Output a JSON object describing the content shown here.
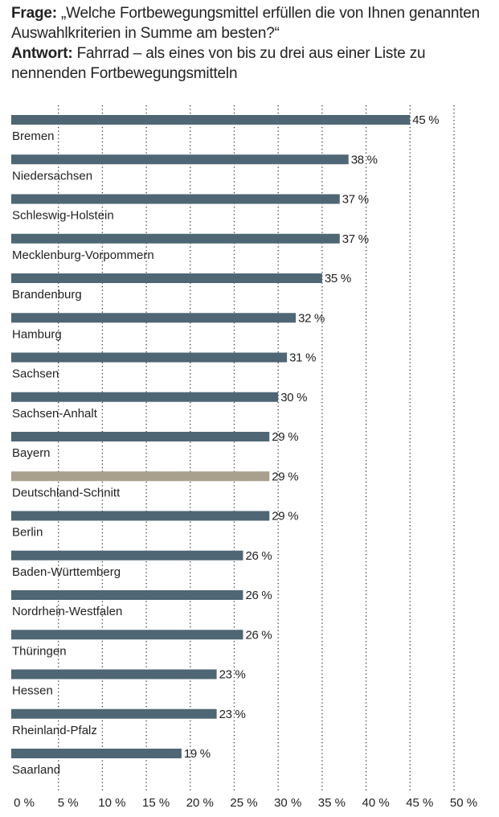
{
  "question": {
    "label": "Frage:",
    "text": "„Welche Fortbewegungsmittel erfüllen die von Ihnen genannten Auswahlkriterien in Summe am besten?“"
  },
  "answer": {
    "label": "Antwort:",
    "text": "Fahrrad – als eines von bis zu drei aus einer Liste zu nennenden Fortbewegungsmitteln"
  },
  "colors": {
    "bar": "#4f6674",
    "highlight": "#a89f8d",
    "grid": "#333333",
    "text": "#222222"
  },
  "chart_data": {
    "type": "bar",
    "orientation": "horizontal",
    "categories": [
      "Bremen",
      "Niedersachsen",
      "Schleswig-Holstein",
      "Mecklenburg-Vorpommern",
      "Brandenburg",
      "Hamburg",
      "Sachsen",
      "Sachsen-Anhalt",
      "Bayern",
      "Deutschland-Schnitt",
      "Berlin",
      "Baden-Württemberg",
      "Nordrhein-Westfalen",
      "Thüringen",
      "Hessen",
      "Rheinland-Pfalz",
      "Saarland"
    ],
    "values": [
      45,
      38,
      37,
      37,
      35,
      32,
      31,
      30,
      29,
      29,
      29,
      26,
      26,
      26,
      23,
      23,
      19
    ],
    "value_labels": [
      "45 %",
      "38 %",
      "37 %",
      "37 %",
      "35 %",
      "32 %",
      "31 %",
      "30 %",
      "29 %",
      "29 %",
      "29 %",
      "26 %",
      "26 %",
      "26 %",
      "23 %",
      "23 %",
      "19 %"
    ],
    "highlight_category": "Deutschland-Schnitt",
    "xlim": [
      0,
      50
    ],
    "x_ticks": [
      0,
      5,
      10,
      15,
      20,
      25,
      30,
      35,
      40,
      45,
      50
    ],
    "x_tick_labels": [
      "0 %",
      "5 %",
      "10 %",
      "15 %",
      "20 %",
      "25 %",
      "30 %",
      "35 %",
      "40 %",
      "45 %",
      "50 %"
    ],
    "grid": "vertical-dotted",
    "xlabel": "",
    "ylabel": ""
  }
}
